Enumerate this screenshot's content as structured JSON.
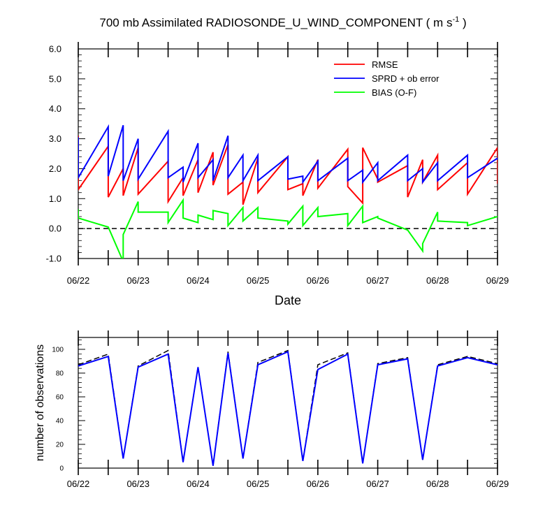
{
  "title": {
    "main": "700 mb Assimilated RADIOSONDE_U_WIND_COMPONENT ( m s",
    "exponent": "-1",
    "close": " )"
  },
  "colors": {
    "rmse": "#ff0000",
    "sprd": "#0000ff",
    "bias": "#00ff00",
    "possible": "#000000",
    "used": "#0000ff"
  },
  "chart_data": [
    {
      "type": "line",
      "title": "700 mb Assimilated RADIOSONDE_U_WIND_COMPONENT ( m s-1 )",
      "xlabel": "Date",
      "ylabel": "",
      "xlim": [
        0,
        7
      ],
      "ylim": [
        -1,
        6
      ],
      "x_ticks": [
        0,
        1,
        2,
        3,
        4,
        5,
        6,
        7
      ],
      "x_tick_labels": [
        "06/22",
        "06/23",
        "06/24",
        "06/25",
        "06/26",
        "06/27",
        "06/28",
        "06/29"
      ],
      "y_ticks": [
        -1,
        0,
        1,
        2,
        3,
        4,
        5,
        6
      ],
      "y_tick_labels": [
        "-1.0",
        "0.0",
        "1.0",
        "2.0",
        "3.0",
        "4.0",
        "5.0",
        "6.0"
      ],
      "zero_line": true,
      "legend_position": "top-right",
      "series": [
        {
          "name": "RMSE",
          "color_key": "rmse",
          "x": [
            0,
            0,
            0.5,
            0.5,
            0.75,
            0.75,
            1,
            1,
            1.5,
            1.5,
            1.75,
            1.75,
            2,
            2,
            2.25,
            2.25,
            2.5,
            2.5,
            2.75,
            2.75,
            3,
            3,
            3.5,
            3.5,
            3.75,
            3.75,
            4,
            4,
            4.5,
            4.5,
            4.75,
            4.75,
            5,
            5,
            5.5,
            5.5,
            5.75,
            5.75,
            6,
            6,
            6.5,
            6.5,
            7,
            7
          ],
          "values": [
            3.1,
            1.3,
            2.75,
            1.05,
            2.0,
            1.1,
            2.7,
            1.15,
            2.25,
            0.9,
            1.7,
            1.1,
            2.3,
            1.2,
            2.55,
            1.45,
            2.8,
            1.15,
            1.55,
            0.8,
            2.35,
            1.2,
            2.4,
            1.3,
            1.5,
            1.1,
            2.3,
            1.35,
            2.65,
            1.4,
            0.85,
            2.7,
            1.65,
            1.55,
            2.1,
            1.05,
            2.3,
            1.55,
            2.45,
            1.3,
            2.2,
            1.15,
            2.7,
            1.5
          ]
        },
        {
          "name": "SPRD + ob error",
          "color_key": "sprd",
          "x": [
            0,
            0,
            0.5,
            0.5,
            0.75,
            0.75,
            1,
            1,
            1.5,
            1.5,
            1.75,
            1.75,
            2,
            2,
            2.25,
            2.25,
            2.5,
            2.5,
            2.75,
            2.75,
            3,
            3,
            3.5,
            3.5,
            3.75,
            3.75,
            4,
            4,
            4.5,
            4.5,
            4.75,
            4.75,
            5,
            5,
            5.5,
            5.5,
            5.75,
            5.75,
            6,
            6,
            6.5,
            6.5,
            7,
            7
          ],
          "values": [
            3.05,
            1.7,
            3.4,
            1.75,
            3.45,
            1.6,
            3.0,
            1.65,
            3.25,
            1.7,
            2.05,
            1.55,
            2.85,
            1.7,
            2.3,
            1.6,
            3.1,
            1.7,
            2.45,
            1.6,
            2.45,
            1.6,
            2.4,
            1.65,
            1.75,
            1.55,
            2.25,
            1.6,
            2.35,
            1.6,
            1.95,
            1.55,
            2.2,
            1.6,
            2.45,
            1.6,
            2.0,
            1.55,
            2.2,
            1.6,
            2.45,
            1.7,
            2.35,
            2.3
          ]
        },
        {
          "name": "BIAS (O-F)",
          "color_key": "bias",
          "x": [
            0,
            0,
            0.5,
            0.75,
            0.75,
            1,
            1,
            1.5,
            1.5,
            1.75,
            1.75,
            2,
            2,
            2.25,
            2.25,
            2.5,
            2.5,
            2.75,
            2.75,
            3,
            3,
            3.5,
            3.5,
            3.75,
            3.75,
            4,
            4,
            4.5,
            4.5,
            4.75,
            4.75,
            5,
            5,
            5.5,
            5.75,
            5.75,
            6,
            6,
            6.5,
            6.5,
            7
          ],
          "values": [
            0.65,
            0.35,
            0.05,
            -1.1,
            -0.2,
            0.9,
            0.55,
            0.55,
            0.2,
            0.95,
            0.35,
            0.2,
            0.45,
            0.3,
            0.6,
            0.5,
            0.1,
            0.7,
            0.25,
            0.7,
            0.35,
            0.25,
            0.15,
            0.75,
            0.1,
            0.7,
            0.4,
            0.5,
            0.1,
            0.75,
            0.2,
            0.4,
            0.35,
            -0.05,
            -0.75,
            -0.5,
            0.55,
            0.25,
            0.2,
            0.1,
            0.4
          ]
        }
      ]
    },
    {
      "type": "line",
      "title": "",
      "xlabel": "",
      "ylabel": "number of observations",
      "xlim": [
        0,
        7
      ],
      "ylim": [
        0,
        110
      ],
      "x_ticks": [
        0,
        1,
        2,
        3,
        4,
        5,
        6,
        7
      ],
      "x_tick_labels": [
        "06/22",
        "06/23",
        "06/24",
        "06/25",
        "06/26",
        "06/27",
        "06/28",
        "06/29"
      ],
      "y_ticks": [
        0,
        20,
        40,
        60,
        80,
        100
      ],
      "y_tick_labels": [
        "0",
        "20",
        "40",
        "60",
        "80",
        "100"
      ],
      "series": [
        {
          "name": "possible",
          "color_key": "possible",
          "dashed": true,
          "x": [
            0,
            0.5,
            0.75,
            1,
            1.5,
            1.75,
            2,
            2.25,
            2.5,
            2.75,
            3,
            3.5,
            3.75,
            4,
            4.5,
            4.75,
            5,
            5.5,
            5.75,
            6,
            6.5,
            7
          ],
          "values": [
            87,
            96,
            8,
            86,
            99,
            5,
            85,
            2,
            98,
            8,
            89,
            99,
            6,
            87,
            97,
            4,
            88,
            93,
            7,
            87,
            94,
            88
          ]
        },
        {
          "name": "used",
          "color_key": "used",
          "dashed": false,
          "x": [
            0,
            0.5,
            0.75,
            1,
            1.5,
            1.75,
            2,
            2.25,
            2.5,
            2.75,
            3,
            3.5,
            3.75,
            4,
            4.5,
            4.75,
            5,
            5.5,
            5.75,
            6,
            6.5,
            7
          ],
          "values": [
            86,
            94,
            8,
            85,
            96,
            5,
            85,
            2,
            97,
            8,
            87,
            98,
            6,
            83,
            96,
            4,
            87,
            92,
            7,
            86,
            93,
            87
          ]
        }
      ]
    }
  ]
}
